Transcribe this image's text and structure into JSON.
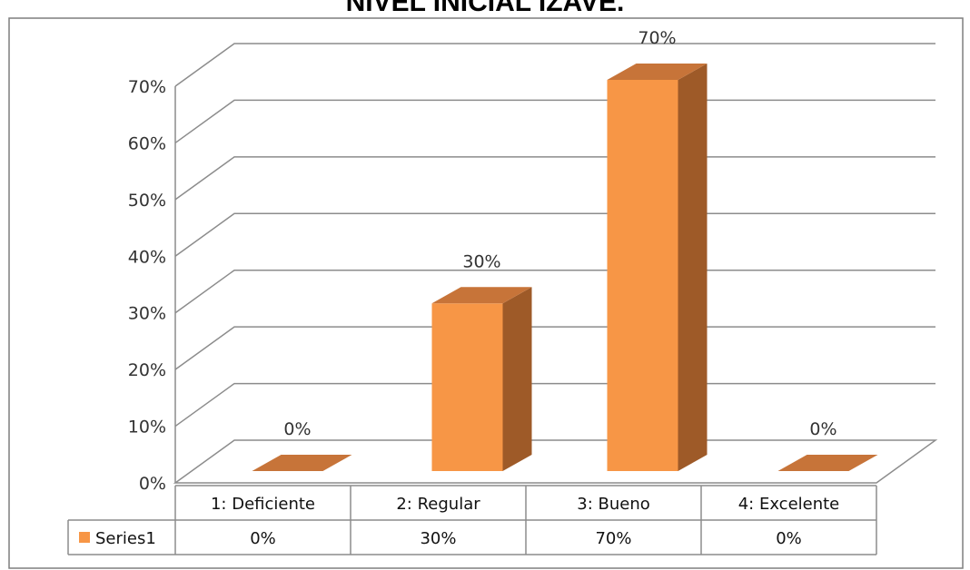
{
  "chart_data": {
    "type": "bar",
    "title": "NIVEL INICIAL IZAVE.",
    "categories": [
      "1: Deficiente",
      "2: Regular",
      "3: Bueno",
      "4: Excelente"
    ],
    "series": [
      {
        "name": "Series1",
        "values": [
          0,
          30,
          70,
          0
        ]
      }
    ],
    "data_labels": [
      "0%",
      "30%",
      "70%",
      "0%"
    ],
    "table_values": [
      "0%",
      "30%",
      "70%",
      "0%"
    ],
    "ylim": [
      0,
      70
    ],
    "yticks": [
      0,
      10,
      20,
      30,
      40,
      50,
      60,
      70
    ],
    "ytick_labels": [
      "0%",
      "10%",
      "20%",
      "30%",
      "40%",
      "50%",
      "60%",
      "70%"
    ],
    "xlabel": "",
    "ylabel": "",
    "grid": true,
    "legend_placement": "data table",
    "style": "3d-column"
  },
  "colors": {
    "bar_front": "#F79646",
    "bar_top": "#C77439",
    "bar_side": "#9E5A28",
    "grid": "#8c8c8c",
    "border": "#7f7f7f"
  }
}
